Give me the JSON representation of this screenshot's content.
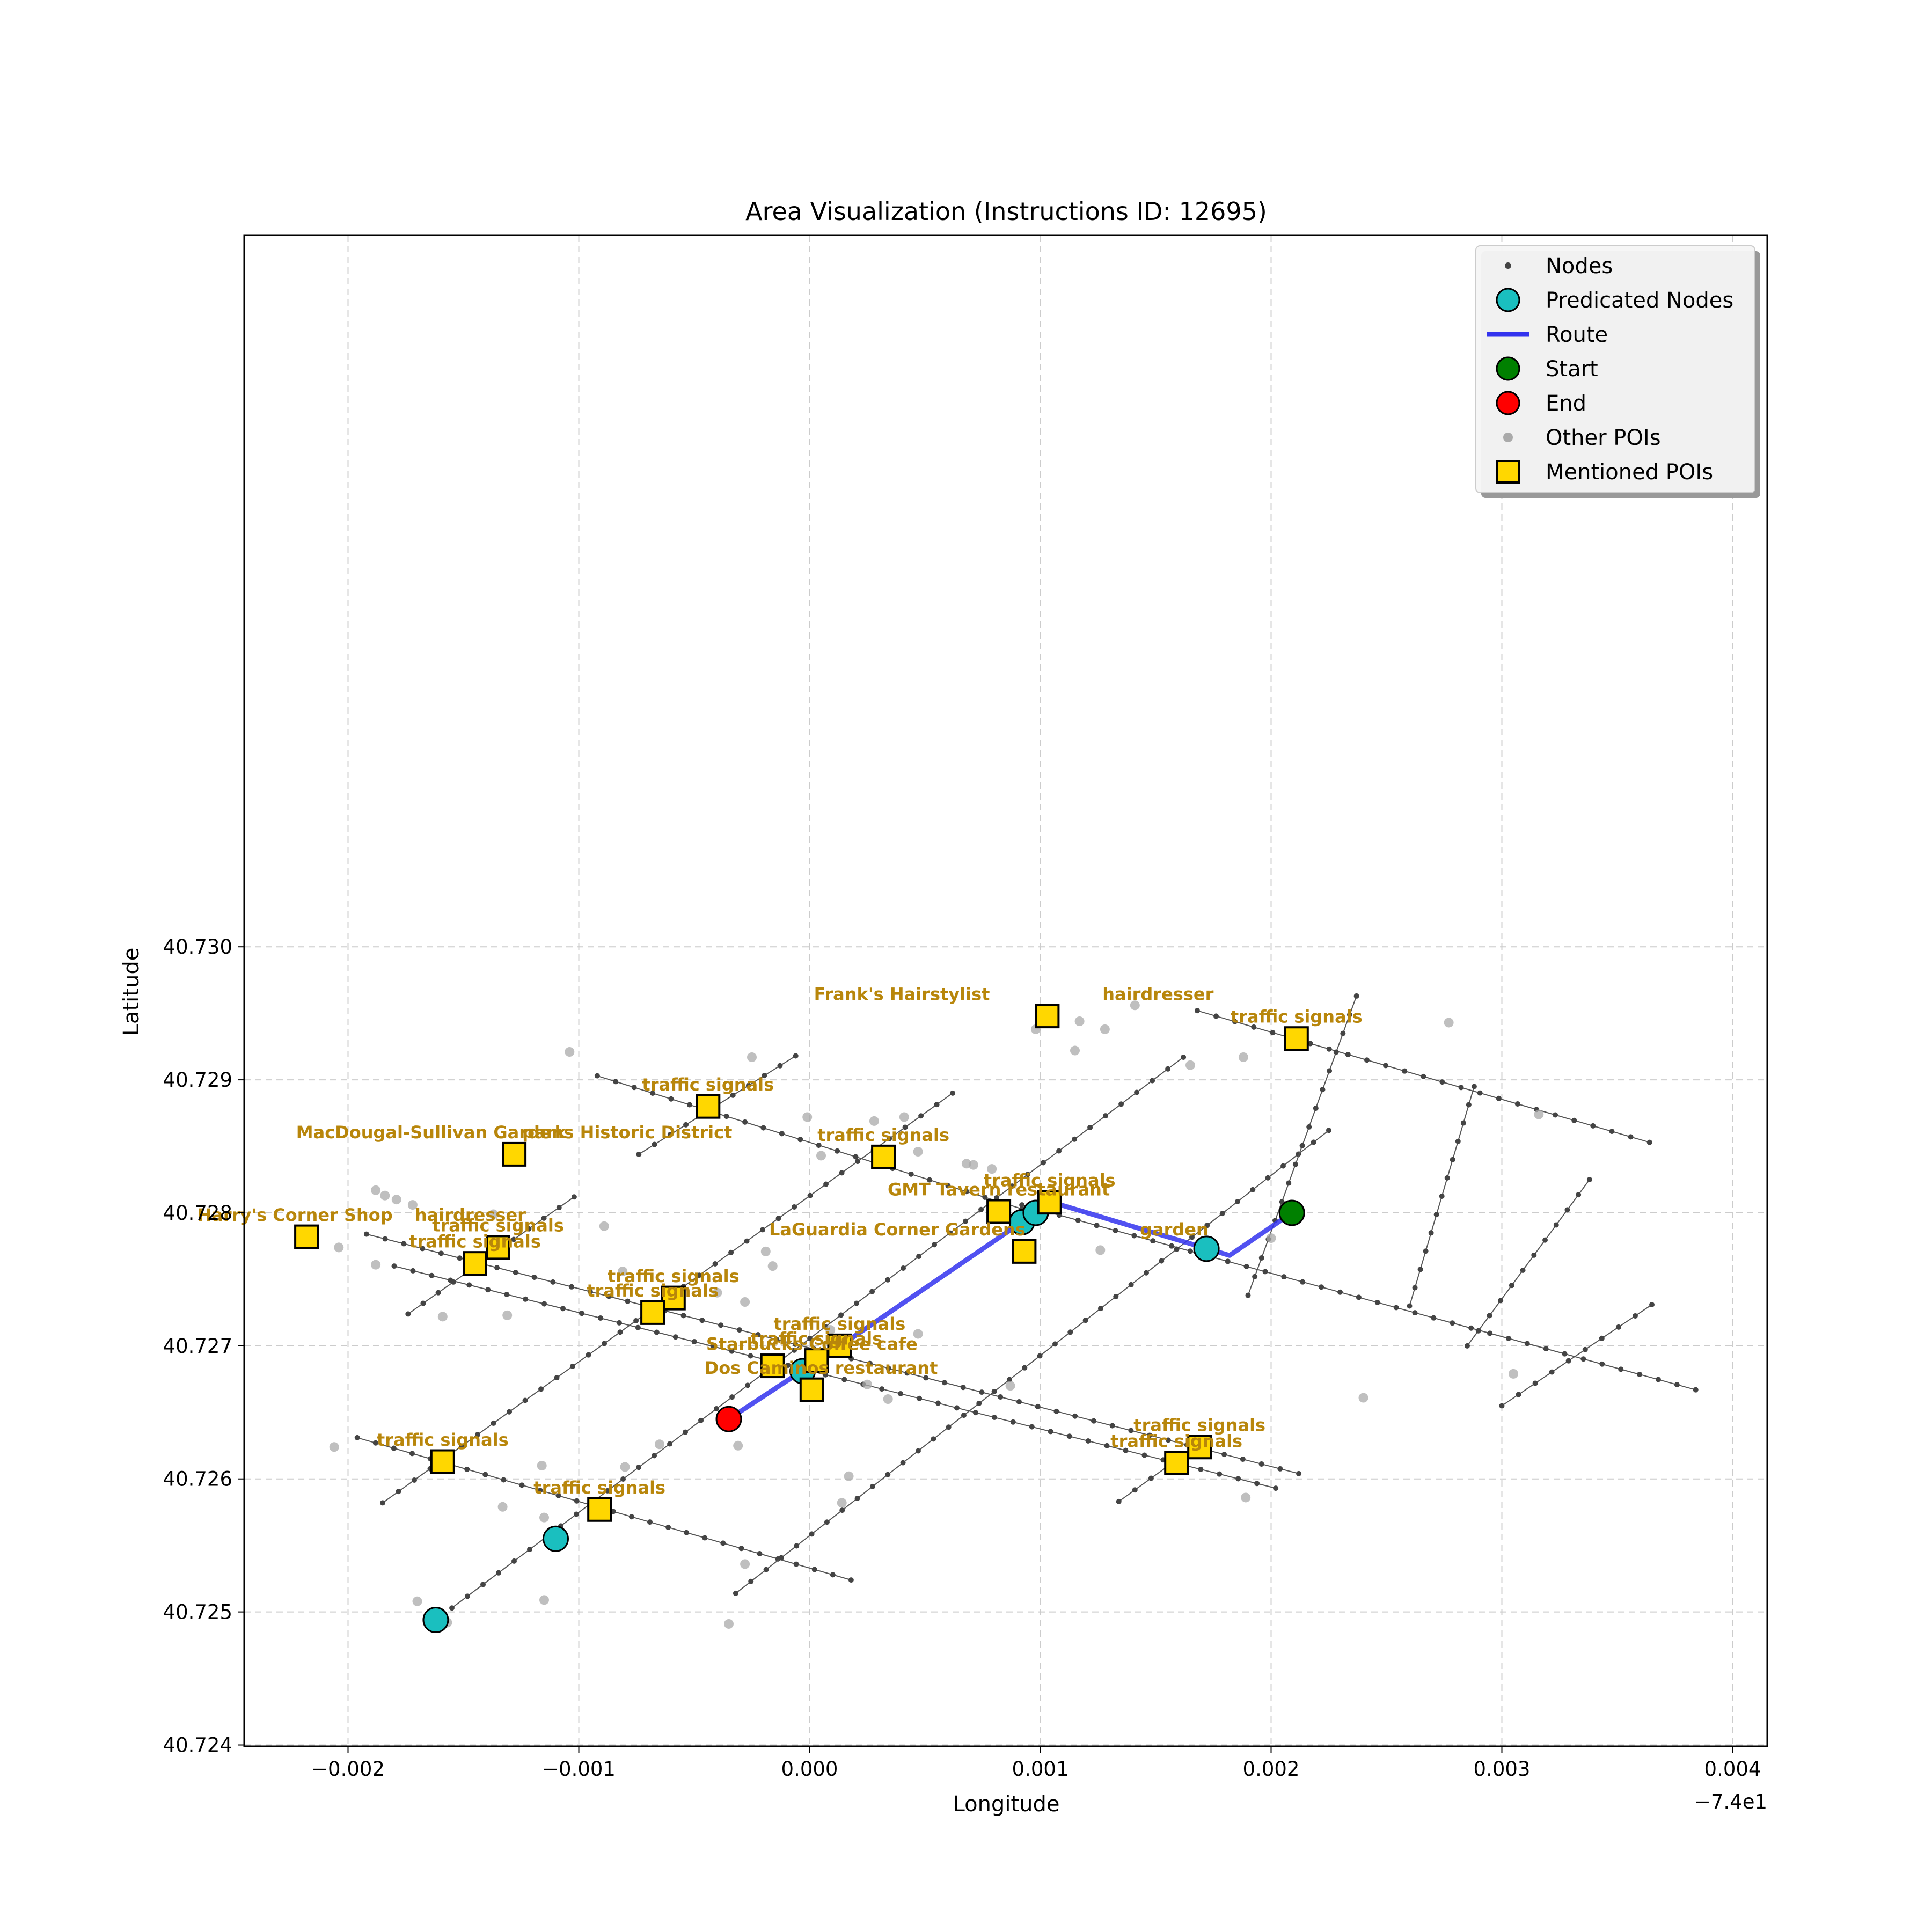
{
  "chart_data": {
    "type": "scatter",
    "title": "Area Visualization (Instructions ID: 12695)",
    "xlabel": "Longitude",
    "ylabel": "Latitude",
    "x_offset_label": "−7.4e1",
    "xlim": [
      -0.00245,
      0.00415
    ],
    "ylim": [
      40.72399,
      40.73535
    ],
    "x_ticks": [
      {
        "value": -0.002,
        "label": "−0.002"
      },
      {
        "value": -0.001,
        "label": "−0.001"
      },
      {
        "value": 0.0,
        "label": "0.000"
      },
      {
        "value": 0.001,
        "label": "0.001"
      },
      {
        "value": 0.002,
        "label": "0.002"
      },
      {
        "value": 0.003,
        "label": "0.003"
      },
      {
        "value": 0.004,
        "label": "0.004"
      }
    ],
    "y_ticks": [
      {
        "value": 40.724,
        "label": "40.724"
      },
      {
        "value": 40.725,
        "label": "40.725"
      },
      {
        "value": 40.726,
        "label": "40.726"
      },
      {
        "value": 40.727,
        "label": "40.727"
      },
      {
        "value": 40.728,
        "label": "40.728"
      },
      {
        "value": 40.729,
        "label": "40.729"
      },
      {
        "value": 40.73,
        "label": "40.730"
      }
    ],
    "grid": true,
    "legend_position": "top-right",
    "legend": [
      {
        "label": "Nodes",
        "marker": "small-dot",
        "color": "#444444"
      },
      {
        "label": "Predicated Nodes",
        "marker": "circle",
        "color": "#1abfbf"
      },
      {
        "label": "Route",
        "marker": "line",
        "color": "#3333ee"
      },
      {
        "label": "Start",
        "marker": "circle",
        "color": "#008000"
      },
      {
        "label": "End",
        "marker": "circle",
        "color": "#ff0000"
      },
      {
        "label": "Other POIs",
        "marker": "gray-dot",
        "color": "#aaaaaa"
      },
      {
        "label": "Mentioned POIs",
        "marker": "square",
        "color": "#ffd700"
      }
    ],
    "streets": [
      [
        [
          -0.00092,
          40.72903
        ],
        [
          0.00092,
          40.72803
        ]
      ],
      [
        [
          -0.00192,
          40.72784
        ],
        [
          0.00212,
          40.72604
        ]
      ],
      [
        [
          -0.00196,
          40.72631
        ],
        [
          0.00018,
          40.72524
        ]
      ],
      [
        [
          0.00168,
          40.72952
        ],
        [
          0.00364,
          40.72853
        ]
      ],
      [
        [
          0.00092,
          40.72806
        ],
        [
          0.00384,
          40.72667
        ]
      ],
      [
        [
          -0.0018,
          40.7276
        ],
        [
          0.00202,
          40.72593
        ]
      ],
      [
        [
          -0.00155,
          40.72503
        ],
        [
          0.00162,
          40.72917
        ]
      ],
      [
        [
          -0.00074,
          40.72844
        ],
        [
          -6e-05,
          40.72918
        ]
      ],
      [
        [
          -0.00185,
          40.72582
        ],
        [
          0.00062,
          40.7289
        ]
      ],
      [
        [
          -0.00174,
          40.72724
        ],
        [
          -0.00102,
          40.72812
        ]
      ],
      [
        [
          -0.00032,
          40.72514
        ],
        [
          0.00225,
          40.72862
        ]
      ],
      [
        [
          0.0019,
          40.72738
        ],
        [
          0.00237,
          40.72963
        ]
      ],
      [
        [
          0.0026,
          40.7273
        ],
        [
          0.00288,
          40.72895
        ]
      ],
      [
        [
          0.00134,
          40.72583
        ],
        [
          0.00162,
          40.72618
        ]
      ],
      [
        [
          0.003,
          40.72655
        ],
        [
          0.00365,
          40.72731
        ]
      ],
      [
        [
          0.00285,
          40.727
        ],
        [
          0.00338,
          40.72825
        ]
      ]
    ],
    "route": [
      [
        0.00209,
        40.728
      ],
      [
        0.00182,
        40.72768
      ],
      [
        0.00105,
        40.72808
      ],
      [
        0.00092,
        40.72793
      ],
      [
        0.00015,
        40.72702
      ],
      [
        -0.00035,
        40.72645
      ]
    ],
    "start": [
      0.00209,
      40.728
    ],
    "end": [
      -0.00035,
      40.72645
    ],
    "predicated_nodes": [
      [
        -0.00162,
        40.72494
      ],
      [
        -0.0011,
        40.72555
      ],
      [
        -3e-05,
        40.72681
      ],
      [
        0.00092,
        40.72793
      ],
      [
        0.00098,
        40.728
      ],
      [
        0.00172,
        40.72773
      ]
    ],
    "other_pois": [
      [
        -0.00035,
        40.72491
      ],
      [
        -0.00157,
        40.72492
      ],
      [
        -0.0017,
        40.72508
      ],
      [
        -0.00115,
        40.72509
      ],
      [
        -0.00028,
        40.72536
      ],
      [
        -0.00115,
        40.72571
      ],
      [
        -0.00133,
        40.72579
      ],
      [
        0.00014,
        40.72582
      ],
      [
        0.00017,
        40.72602
      ],
      [
        -0.0008,
        40.72609
      ],
      [
        -0.00116,
        40.7261
      ],
      [
        -0.00065,
        40.72626
      ],
      [
        -0.00031,
        40.72625
      ],
      [
        -0.00206,
        40.72624
      ],
      [
        0.00189,
        40.72586
      ],
      [
        0.0024,
        40.72661
      ],
      [
        0.00034,
        40.7266
      ],
      [
        0.00025,
        40.72671
      ],
      [
        0.00087,
        40.7267
      ],
      [
        0.00305,
        40.72679
      ],
      [
        0.00047,
        40.72709
      ],
      [
        9e-05,
        40.72712
      ],
      [
        -0.00159,
        40.72722
      ],
      [
        -0.00131,
        40.72723
      ],
      [
        -0.00028,
        40.72733
      ],
      [
        -0.0004,
        40.7274
      ],
      [
        -0.00081,
        40.72756
      ],
      [
        -0.00188,
        40.72761
      ],
      [
        -0.00016,
        40.7276
      ],
      [
        -0.00204,
        40.72774
      ],
      [
        -0.00019,
        40.72771
      ],
      [
        0.00126,
        40.72772
      ],
      [
        0.002,
        40.72781
      ],
      [
        -0.00137,
        40.72799
      ],
      [
        -0.00089,
        40.7279
      ],
      [
        -0.00172,
        40.72806
      ],
      [
        -0.00179,
        40.7281
      ],
      [
        -0.00184,
        40.72813
      ],
      [
        -0.00188,
        40.72817
      ],
      [
        0.00068,
        40.72837
      ],
      [
        0.00071,
        40.72836
      ],
      [
        0.00079,
        40.72833
      ],
      [
        5e-05,
        40.72843
      ],
      [
        0.00047,
        40.72846
      ],
      [
        -1e-05,
        40.72872
      ],
      [
        0.00028,
        40.72869
      ],
      [
        0.00041,
        40.72872
      ],
      [
        0.00316,
        40.72874
      ],
      [
        -0.00104,
        40.72921
      ],
      [
        -0.00025,
        40.72917
      ],
      [
        0.00115,
        40.72922
      ],
      [
        0.00165,
        40.72911
      ],
      [
        0.00188,
        40.72917
      ],
      [
        0.00098,
        40.72938
      ],
      [
        0.00128,
        40.72938
      ],
      [
        0.00117,
        40.72944
      ],
      [
        0.00277,
        40.72943
      ],
      [
        0.00141,
        40.72956
      ]
    ],
    "mentioned_pois": [
      {
        "name": "Frank's Hairstylist",
        "category": "hairdresser",
        "x": 0.00103,
        "y": 40.72948
      },
      {
        "name": "traffic signals",
        "category": "",
        "x": 0.00211,
        "y": 40.72931
      },
      {
        "name": "traffic signals",
        "category": "",
        "x": -0.00044,
        "y": 40.7288
      },
      {
        "name": "MacDougal-Sullivan Gardens Historic District",
        "category": "park",
        "x": -0.00128,
        "y": 40.72844
      },
      {
        "name": "traffic signals",
        "category": "",
        "x": 0.00032,
        "y": 40.72842
      },
      {
        "name": "traffic signals",
        "category": "",
        "x": 0.00104,
        "y": 40.72808
      },
      {
        "name": "GMT Tavern",
        "category": "restaurant",
        "x": 0.00082,
        "y": 40.72801
      },
      {
        "name": "Harry's Corner Shop",
        "category": "hairdresser",
        "x": -0.00218,
        "y": 40.72782
      },
      {
        "name": "traffic signals",
        "category": "",
        "x": -0.00135,
        "y": 40.72774
      },
      {
        "name": "traffic signals",
        "category": "",
        "x": -0.00145,
        "y": 40.72762
      },
      {
        "name": "LaGuardia Corner Gardens",
        "category": "garden",
        "x": 0.00093,
        "y": 40.72771
      },
      {
        "name": "traffic signals",
        "category": "",
        "x": -0.00059,
        "y": 40.72736
      },
      {
        "name": "traffic signals",
        "category": "",
        "x": -0.00068,
        "y": 40.72725
      },
      {
        "name": "traffic signals",
        "category": "",
        "x": 0.00013,
        "y": 40.727
      },
      {
        "name": "traffic signals",
        "category": "",
        "x": 3e-05,
        "y": 40.72689
      },
      {
        "name": "Starbucks Coffee",
        "category": "cafe",
        "x": -0.00016,
        "y": 40.72685
      },
      {
        "name": "Dos Caminos",
        "category": "restaurant",
        "x": 1e-05,
        "y": 40.72667
      },
      {
        "name": "traffic signals",
        "category": "",
        "x": 0.00169,
        "y": 40.72624
      },
      {
        "name": "traffic signals",
        "category": "",
        "x": 0.00159,
        "y": 40.72612
      },
      {
        "name": "traffic signals",
        "category": "",
        "x": -0.00159,
        "y": 40.72613
      },
      {
        "name": "traffic signals",
        "category": "",
        "x": -0.00091,
        "y": 40.72577
      }
    ],
    "labels": [
      {
        "text": "Frank's Hairstylist",
        "x": 0.0004,
        "y": 40.7296
      },
      {
        "text": "hairdresser",
        "x": 0.00151,
        "y": 40.7296
      },
      {
        "text": "traffic signals",
        "x": 0.00211,
        "y": 40.72943
      },
      {
        "text": "traffic signals",
        "x": -0.00044,
        "y": 40.72892
      },
      {
        "text": "MacDougal-Sullivan Gardens Historic District",
        "x": -0.00128,
        "y": 40.72856
      },
      {
        "text": "park",
        "x": -0.00115,
        "y": 40.72856
      },
      {
        "text": "traffic signals",
        "x": 0.00032,
        "y": 40.72854
      },
      {
        "text": "traffic signals",
        "x": 0.00104,
        "y": 40.7282
      },
      {
        "text": "GMT Tavern restaurant",
        "x": 0.00082,
        "y": 40.72813
      },
      {
        "text": "Harry's Corner Shop",
        "x": -0.00223,
        "y": 40.72794
      },
      {
        "text": "hairdresser",
        "x": -0.00147,
        "y": 40.72794
      },
      {
        "text": "traffic signals",
        "x": -0.00135,
        "y": 40.72786
      },
      {
        "text": "traffic signals",
        "x": -0.00145,
        "y": 40.72774
      },
      {
        "text": "LaGuardia Corner Gardens",
        "x": 0.00038,
        "y": 40.72783
      },
      {
        "text": "garden",
        "x": 0.00158,
        "y": 40.72783
      },
      {
        "text": "traffic signals",
        "x": -0.00059,
        "y": 40.72748
      },
      {
        "text": "traffic signals",
        "x": -0.00068,
        "y": 40.72737
      },
      {
        "text": "traffic signals",
        "x": 0.00013,
        "y": 40.72712
      },
      {
        "text": "traffic signals",
        "x": 3e-05,
        "y": 40.72701
      },
      {
        "text": "Starbucks Coffee cafe",
        "x": 1e-05,
        "y": 40.72697
      },
      {
        "text": "Dos Caminos restaurant",
        "x": 5e-05,
        "y": 40.72679
      },
      {
        "text": "traffic signals",
        "x": 0.00169,
        "y": 40.72636
      },
      {
        "text": "traffic signals",
        "x": 0.00159,
        "y": 40.72624
      },
      {
        "text": "traffic signals",
        "x": -0.00159,
        "y": 40.72625
      },
      {
        "text": "traffic signals",
        "x": -0.00091,
        "y": 40.72589
      }
    ]
  }
}
